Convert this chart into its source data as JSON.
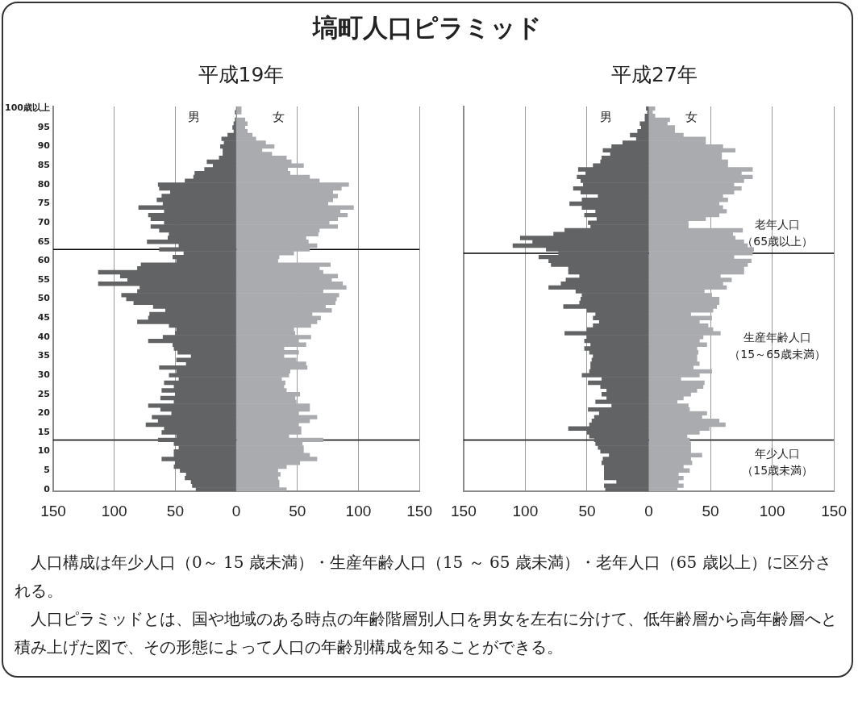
{
  "chart_data": [
    {
      "type": "bar",
      "title": "塙町人口ピラミッド",
      "subtitle": "平成19年",
      "orientation": "horizontal",
      "stacked": true,
      "grid": "x",
      "x": [
        100,
        99,
        98,
        97,
        96,
        95,
        94,
        93,
        92,
        91,
        90,
        89,
        88,
        87,
        86,
        85,
        84,
        83,
        82,
        81,
        80,
        79,
        78,
        77,
        76,
        75,
        74,
        73,
        72,
        71,
        70,
        69,
        68,
        67,
        66,
        65,
        64,
        63,
        62,
        61,
        60,
        59,
        58,
        57,
        56,
        55,
        54,
        53,
        52,
        51,
        50,
        49,
        48,
        47,
        46,
        45,
        44,
        43,
        42,
        41,
        40,
        39,
        38,
        37,
        36,
        35,
        34,
        33,
        32,
        31,
        30,
        29,
        28,
        27,
        26,
        25,
        24,
        23,
        22,
        21,
        20,
        19,
        18,
        17,
        16,
        15,
        14,
        13,
        12,
        11,
        10,
        9,
        8,
        7,
        6,
        5,
        4,
        3,
        2,
        1,
        0
      ],
      "series": [
        {
          "name": "男",
          "color": "#626365",
          "values": [
            0,
            -1,
            0,
            -1,
            -2,
            -3,
            -2,
            -7,
            -12,
            -10,
            -13,
            -11,
            -11,
            -14,
            -24,
            -19,
            -26,
            -34,
            -35,
            -42,
            -64,
            -63,
            -54,
            -61,
            -65,
            -60,
            -80,
            -59,
            -72,
            -70,
            -59,
            -70,
            -63,
            -55,
            -56,
            -73,
            -47,
            -63,
            -43,
            -52,
            -49,
            -78,
            -81,
            -113,
            -95,
            -89,
            -113,
            -79,
            -81,
            -94,
            -90,
            -84,
            -68,
            -58,
            -71,
            -72,
            -81,
            -55,
            -49,
            -50,
            -60,
            -72,
            -52,
            -51,
            -48,
            -37,
            -49,
            -41,
            -63,
            -49,
            -55,
            -47,
            -59,
            -51,
            -61,
            -50,
            -62,
            -51,
            -72,
            -62,
            -53,
            -69,
            -64,
            -74,
            -59,
            -61,
            -49,
            -64,
            -51,
            -47,
            -51,
            -51,
            -61,
            -50,
            -51,
            -46,
            -41,
            -42,
            -37,
            -36,
            -33
          ]
        },
        {
          "name": "女",
          "color": "#aaabae",
          "values": [
            4,
            4,
            null,
            7,
            9,
            7,
            9,
            13,
            16,
            24,
            31,
            21,
            29,
            41,
            45,
            55,
            42,
            44,
            60,
            68,
            92,
            86,
            79,
            83,
            79,
            75,
            96,
            85,
            91,
            83,
            76,
            83,
            68,
            67,
            57,
            59,
            66,
            60,
            47,
            35,
            34,
            77,
            68,
            71,
            83,
            78,
            87,
            90,
            71,
            84,
            82,
            81,
            73,
            78,
            62,
            69,
            66,
            61,
            47,
            48,
            61,
            51,
            57,
            39,
            51,
            39,
            49,
            57,
            58,
            44,
            43,
            37,
            40,
            39,
            41,
            52,
            48,
            49,
            60,
            60,
            51,
            66,
            60,
            51,
            53,
            53,
            43,
            71,
            54,
            55,
            55,
            60,
            66,
            52,
            41,
            34,
            36,
            34,
            35,
            35,
            41
          ]
        }
      ],
      "xlim": [
        -150,
        150
      ],
      "xticks": [
        {
          "value": -150,
          "label": "150"
        },
        {
          "value": -100,
          "label": "100"
        },
        {
          "value": -50,
          "label": "50"
        },
        0,
        50,
        100,
        150
      ],
      "ylim": [
        -0.5,
        100.5
      ],
      "yticks": [
        0,
        5,
        10,
        15,
        20,
        25,
        30,
        35,
        40,
        45,
        50,
        55,
        60,
        65,
        70,
        75,
        80,
        85,
        90,
        95,
        {
          "value": 100,
          "label": "100歳以上"
        }
      ],
      "ref_lines": [
        {
          "axis": "y",
          "value": 63,
          "color": "#000000"
        },
        {
          "axis": "y",
          "value": 13,
          "color": "#000000"
        }
      ],
      "annotations": [
        "人口構成は年少人口（0～ 15 歳未満）・生産年齢人口（15 ～ 65 歳未満）・老年人口（65 歳以上）に区分される。",
        "人口ピラミッドとは、国や地域のある時点の年齢階層別人口を男女を左右に分けて、低年齢層から高年齢層へと積み上げた図で、その形態によって人口の年齢別構成を知ることができる。"
      ]
    },
    {
      "type": "bar",
      "subtitle": "平成27年",
      "orientation": "horizontal",
      "stacked": true,
      "grid": "x",
      "tick_labels": "x",
      "x": [
        100,
        99,
        98,
        97,
        96,
        95,
        94,
        93,
        92,
        91,
        90,
        89,
        88,
        87,
        86,
        85,
        84,
        83,
        82,
        81,
        80,
        79,
        78,
        77,
        76,
        75,
        74,
        73,
        72,
        71,
        70,
        69,
        68,
        67,
        66,
        65,
        64,
        63,
        62,
        61,
        60,
        59,
        58,
        57,
        56,
        55,
        54,
        53,
        52,
        51,
        50,
        49,
        48,
        47,
        46,
        45,
        44,
        43,
        42,
        41,
        40,
        39,
        38,
        37,
        36,
        35,
        34,
        33,
        32,
        31,
        30,
        29,
        28,
        27,
        26,
        25,
        24,
        23,
        22,
        21,
        20,
        19,
        18,
        17,
        16,
        15,
        14,
        13,
        12,
        11,
        10,
        9,
        8,
        7,
        6,
        5,
        4,
        3,
        2,
        1,
        0
      ],
      "series": [
        {
          "name": "男",
          "color": "#626365",
          "values": [
            -2,
            -1,
            -3,
            -3,
            -7,
            -6,
            -9,
            -15,
            -10,
            -21,
            -30,
            -37,
            -31,
            -38,
            -39,
            -45,
            -57,
            -51,
            -58,
            -55,
            -53,
            -61,
            -55,
            -41,
            -54,
            -64,
            -54,
            -43,
            -52,
            -42,
            -49,
            -47,
            -68,
            -77,
            -104,
            -94,
            -110,
            -83,
            -73,
            -89,
            -81,
            -79,
            -65,
            -65,
            -56,
            -67,
            -71,
            -81,
            -59,
            -54,
            -55,
            -56,
            -69,
            -50,
            -43,
            -45,
            -40,
            -45,
            -50,
            -68,
            -50,
            -52,
            -47,
            -52,
            -48,
            -45,
            -46,
            -47,
            -47,
            -48,
            -54,
            -38,
            -49,
            -39,
            -34,
            -38,
            -34,
            -43,
            -30,
            -49,
            -40,
            -44,
            -46,
            -48,
            -65,
            -50,
            -48,
            -44,
            -43,
            -41,
            -39,
            -32,
            -37,
            -38,
            -36,
            -36,
            -36,
            -36,
            -26,
            -36,
            -35
          ]
        },
        {
          "name": "女",
          "color": "#aaabae",
          "values": [
            5,
            3,
            5,
            17,
            15,
            21,
            21,
            28,
            46,
            46,
            60,
            70,
            59,
            59,
            64,
            64,
            84,
            75,
            84,
            77,
            69,
            75,
            69,
            60,
            64,
            57,
            60,
            63,
            57,
            46,
            32,
            32,
            76,
            68,
            70,
            77,
            80,
            85,
            84,
            69,
            83,
            80,
            77,
            77,
            58,
            67,
            60,
            63,
            45,
            51,
            57,
            57,
            55,
            52,
            34,
            51,
            41,
            48,
            52,
            58,
            44,
            41,
            47,
            39,
            40,
            39,
            39,
            41,
            36,
            51,
            41,
            26,
            45,
            44,
            39,
            34,
            28,
            23,
            32,
            33,
            47,
            43,
            57,
            62,
            49,
            41,
            31,
            33,
            34,
            34,
            34,
            43,
            34,
            35,
            28,
            33,
            24,
            28,
            24,
            28,
            23
          ]
        }
      ],
      "xlim": [
        -150,
        150
      ],
      "xticks": [
        {
          "value": -150,
          "label": "150"
        },
        {
          "value": -100,
          "label": "100"
        },
        {
          "value": -50,
          "label": "50"
        },
        0,
        50,
        100,
        150
      ],
      "ylim": [
        -0.5,
        100.5
      ],
      "ref_lines": [
        {
          "axis": "y",
          "value": 62,
          "color": "#000000"
        },
        {
          "axis": "y",
          "value": 13,
          "color": "#000000"
        }
      ],
      "annotations": [
        "老年人口（65歳以上）",
        "生産年齢人口（15～65歳未満）",
        "年少人口（15歳未満）"
      ]
    }
  ]
}
